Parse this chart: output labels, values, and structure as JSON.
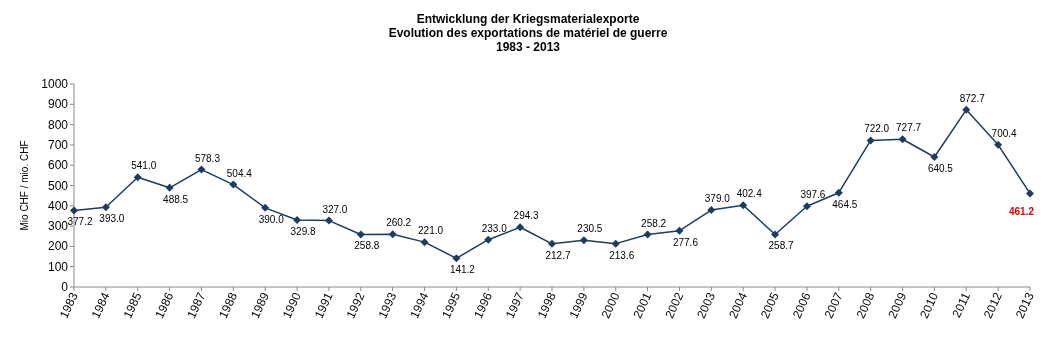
{
  "chart_data": {
    "type": "line",
    "title": "Entwicklung der Kriegsmaterialexporte\nEvolution des exportations de matériel de guerre\n1983 - 2013",
    "ylabel": "Mio CHF / mio. CHF",
    "categories": [
      "1983",
      "1984",
      "1985",
      "1986",
      "1987",
      "1988",
      "1989",
      "1990",
      "1991",
      "1992",
      "1993",
      "1994",
      "1995",
      "1996",
      "1997",
      "1998",
      "1999",
      "2000",
      "2001",
      "2002",
      "2003",
      "2004",
      "2005",
      "2006",
      "2007",
      "2008",
      "2009",
      "2010",
      "2011",
      "2012",
      "2013"
    ],
    "series": [
      {
        "color": "#1f3b5f",
        "values": [
          377.2,
          393.0,
          541.0,
          488.5,
          578.3,
          504.4,
          390.0,
          329.8,
          327.0,
          258.8,
          260.2,
          221.0,
          141.2,
          233.0,
          294.3,
          212.7,
          230.5,
          213.6,
          258.2,
          277.6,
          379.0,
          402.4,
          258.7,
          397.6,
          464.5,
          722.0,
          727.7,
          640.5,
          872.7,
          700.4,
          461.2
        ],
        "value_labels": [
          "377.2",
          "393.0",
          "541.0",
          "488.5",
          "578.3",
          "504.4",
          "390.0",
          "329.8",
          "327.0",
          "258.8",
          "260.2",
          "221.0",
          "141.2",
          "233.0",
          "294.3",
          "212.7",
          "230.5",
          "213.6",
          "258.2",
          "277.6",
          "379.0",
          "402.4",
          "258.7",
          "397.6",
          "464.5",
          "722.0",
          "727.7",
          "640.5",
          "872.7",
          "700.4",
          "461.2"
        ]
      }
    ],
    "ylim": [
      0,
      1000
    ],
    "yticks": [
      0,
      100,
      200,
      300,
      400,
      500,
      600,
      700,
      800,
      900,
      1000
    ],
    "grid": false,
    "marker": "diamond",
    "line_style": "solid"
  }
}
